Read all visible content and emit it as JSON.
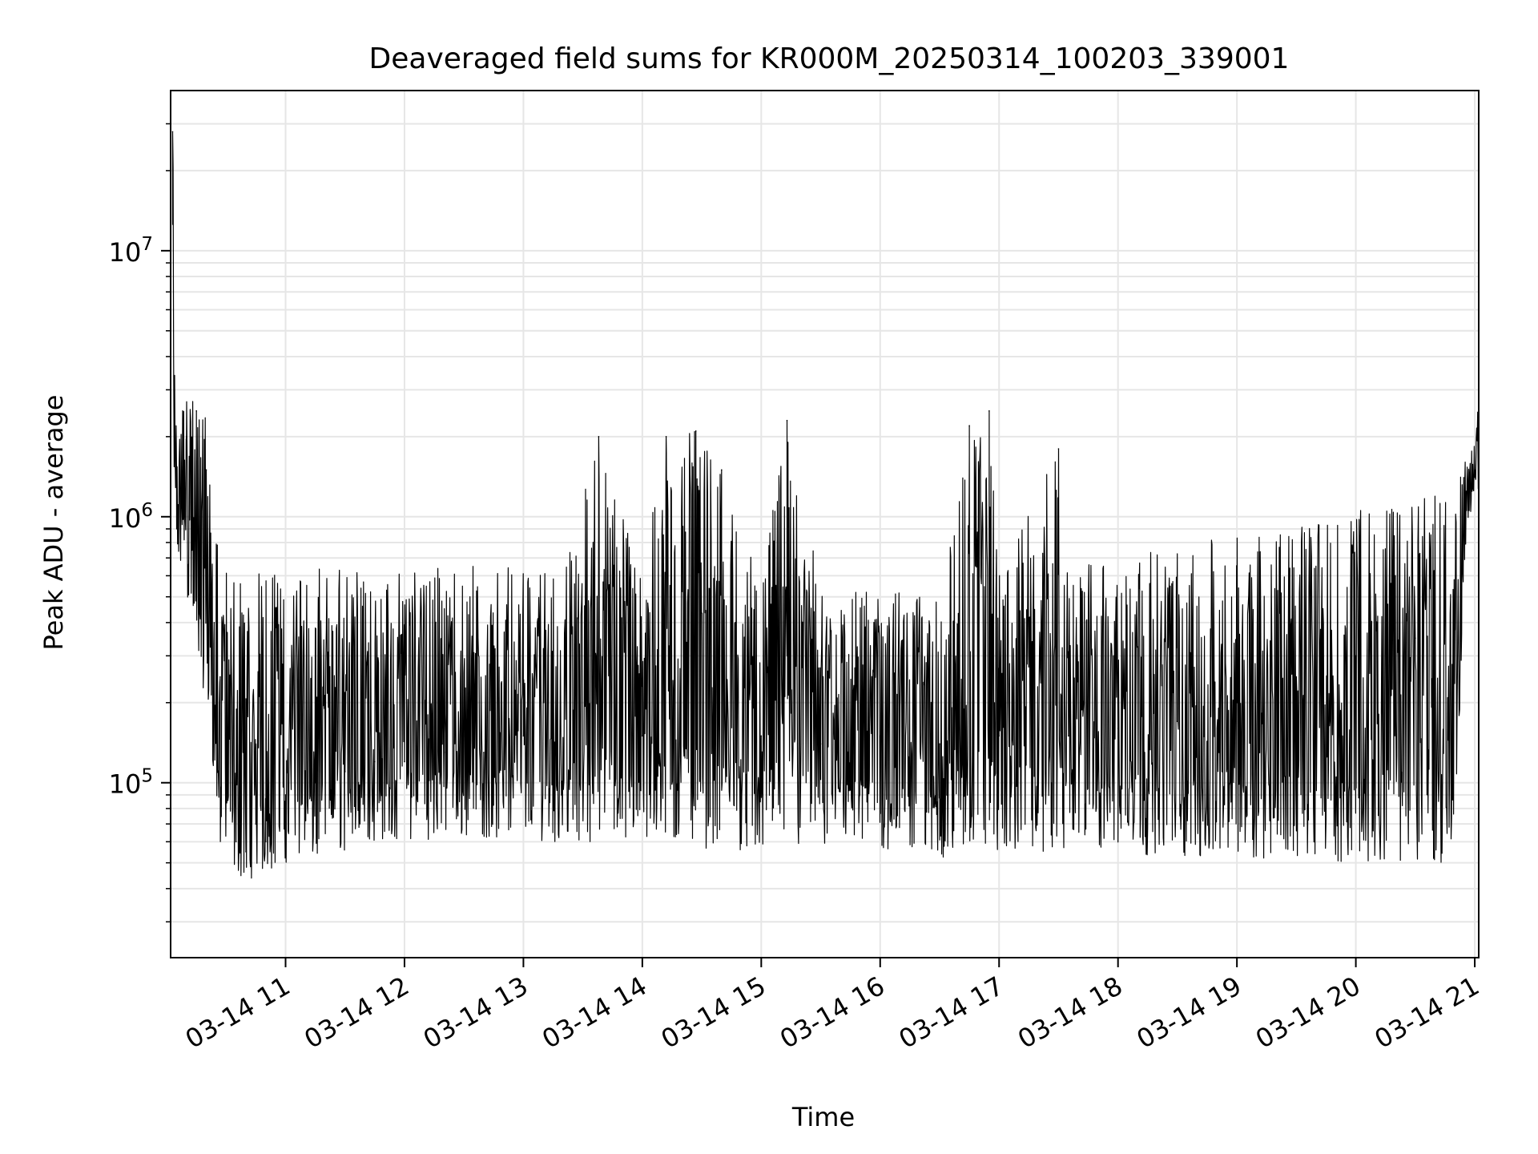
{
  "chart_data": {
    "type": "line",
    "title": "Deaveraged field sums for KR000M_20250314_100203_339001",
    "xlabel": "Time",
    "ylabel": "Peak ADU - average",
    "xlim": [
      "2025-03-14T10:02",
      "2025-03-14T21:02"
    ],
    "ylim": [
      22000,
      40000000
    ],
    "yscale": "log",
    "grid": true,
    "line_color": "#000000",
    "grid_color": "#e6e6e6",
    "x_ticks": [
      {
        "t": "2025-03-14T11:00",
        "label": "03-14 11"
      },
      {
        "t": "2025-03-14T12:00",
        "label": "03-14 12"
      },
      {
        "t": "2025-03-14T13:00",
        "label": "03-14 13"
      },
      {
        "t": "2025-03-14T14:00",
        "label": "03-14 14"
      },
      {
        "t": "2025-03-14T15:00",
        "label": "03-14 15"
      },
      {
        "t": "2025-03-14T16:00",
        "label": "03-14 16"
      },
      {
        "t": "2025-03-14T17:00",
        "label": "03-14 17"
      },
      {
        "t": "2025-03-14T18:00",
        "label": "03-14 18"
      },
      {
        "t": "2025-03-14T19:00",
        "label": "03-14 19"
      },
      {
        "t": "2025-03-14T20:00",
        "label": "03-14 20"
      },
      {
        "t": "2025-03-14T21:00",
        "label": "03-14 21"
      }
    ],
    "y_ticks": [
      {
        "value": 100000,
        "base": "10",
        "exp": "5"
      },
      {
        "value": 1000000,
        "base": "10",
        "exp": "6"
      },
      {
        "value": 10000000,
        "base": "10",
        "exp": "7"
      }
    ],
    "series": [
      {
        "x": [
          "2025-03-14T10:03",
          "2025-03-14T10:05",
          "2025-03-14T10:10",
          "2025-03-14T10:15",
          "2025-03-14T10:20",
          "2025-03-14T10:24",
          "2025-03-14T10:27",
          "2025-03-14T10:30",
          "2025-03-14T10:35",
          "2025-03-14T10:40",
          "2025-03-14T10:45",
          "2025-03-14T10:50",
          "2025-03-14T11:00",
          "2025-03-14T11:15",
          "2025-03-14T11:30",
          "2025-03-14T11:45",
          "2025-03-14T12:00",
          "2025-03-14T12:20",
          "2025-03-14T12:40",
          "2025-03-14T13:00",
          "2025-03-14T13:20",
          "2025-03-14T13:38",
          "2025-03-14T14:00",
          "2025-03-14T14:12",
          "2025-03-14T14:27",
          "2025-03-14T14:40",
          "2025-03-14T15:00",
          "2025-03-14T15:13",
          "2025-03-14T15:30",
          "2025-03-14T16:00",
          "2025-03-14T16:30",
          "2025-03-14T16:45",
          "2025-03-14T16:55",
          "2025-03-14T17:00",
          "2025-03-14T17:30",
          "2025-03-14T17:35",
          "2025-03-14T18:00",
          "2025-03-14T18:30",
          "2025-03-14T19:00",
          "2025-03-14T19:30",
          "2025-03-14T20:00",
          "2025-03-14T20:30",
          "2025-03-14T20:50",
          "2025-03-14T20:55",
          "2025-03-14T21:00",
          "2025-03-14T21:02"
        ],
        "y": [
          28000000,
          1500000,
          2000000,
          2500000,
          1500000,
          400000,
          250000,
          100000,
          60000,
          55000,
          70000,
          60000,
          90000,
          100000,
          110000,
          120000,
          120000,
          130000,
          130000,
          150000,
          130000,
          2000000,
          150000,
          2000000,
          2100000,
          1500000,
          150000,
          2300000,
          140000,
          150000,
          140000,
          2200000,
          2500000,
          150000,
          1800000,
          150000,
          160000,
          170000,
          200000,
          250000,
          300000,
          350000,
          400000,
          1400000,
          1500000,
          2800000
        ],
        "lower": [
          1000000,
          700000,
          500000,
          300000,
          200000,
          100000,
          55000,
          48000,
          45000,
          42000,
          45000,
          45000,
          50000,
          50000,
          55000,
          60000,
          60000,
          62000,
          62000,
          60000,
          60000,
          60000,
          58000,
          58000,
          57000,
          56000,
          55000,
          55000,
          55000,
          55000,
          52000,
          52000,
          52000,
          55000,
          55000,
          55000,
          55000,
          52000,
          52000,
          52000,
          50000,
          50000,
          50000,
          700000,
          1300000,
          1200000
        ],
        "upper": [
          28000000,
          2500000,
          2800000,
          2800000,
          2500000,
          800000,
          800000,
          650000,
          620000,
          600000,
          620000,
          620000,
          630000,
          640000,
          650000,
          650000,
          660000,
          660000,
          670000,
          660000,
          650000,
          2000000,
          620000,
          2000000,
          2100000,
          1500000,
          560000,
          2300000,
          550000,
          530000,
          500000,
          2200000,
          2500000,
          600000,
          1800000,
          650000,
          700000,
          780000,
          850000,
          950000,
          1050000,
          1150000,
          1250000,
          1600000,
          1900000,
          2800000
        ]
      }
    ]
  }
}
